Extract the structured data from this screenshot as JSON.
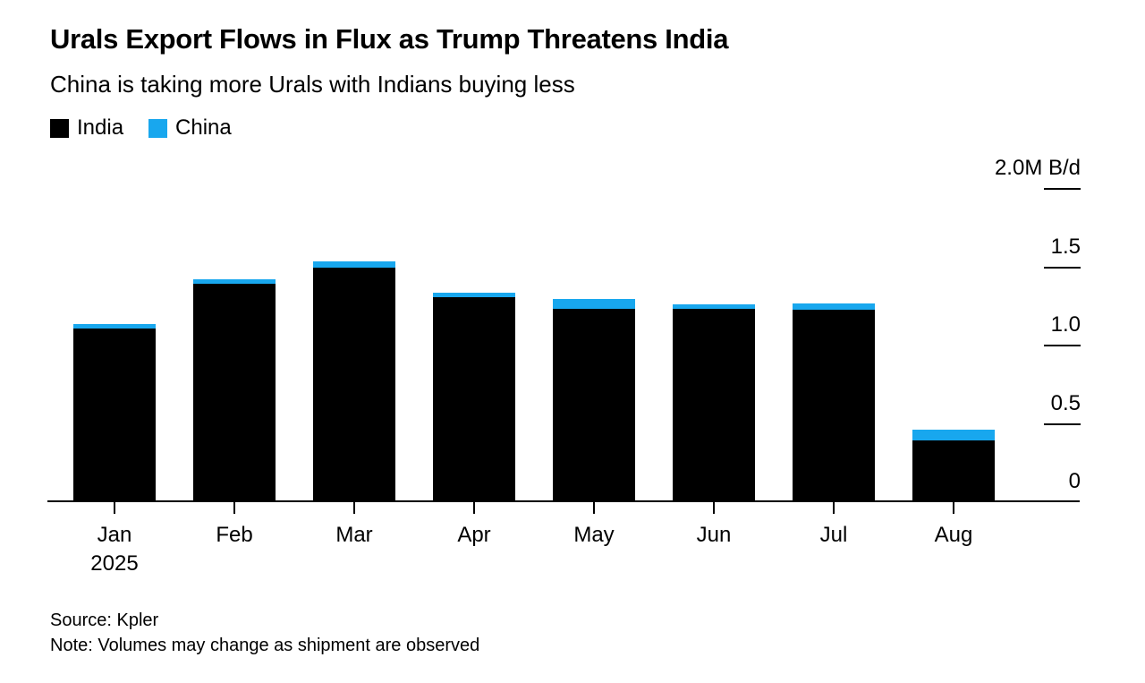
{
  "chart_data": {
    "type": "bar",
    "stacked": true,
    "title": "Urals Export Flows in Flux as Trump Threatens India",
    "subtitle": "China is taking more Urals with Indians buying less",
    "categories": [
      "Jan",
      "Feb",
      "Mar",
      "Apr",
      "May",
      "Jun",
      "Jul",
      "Aug"
    ],
    "x_sublabel": {
      "index": 0,
      "text": "2025"
    },
    "series": [
      {
        "name": "India",
        "color": "#000000",
        "values": [
          1.1,
          1.39,
          1.49,
          1.3,
          1.23,
          1.23,
          1.22,
          0.39
        ]
      },
      {
        "name": "China",
        "color": "#18a7ee",
        "values": [
          0.03,
          0.03,
          0.04,
          0.03,
          0.06,
          0.03,
          0.04,
          0.07
        ]
      }
    ],
    "unit": "M B/d",
    "ylim": [
      0,
      2.0
    ],
    "yticks": [
      {
        "value": 2.0,
        "label": "2.0M B/d"
      },
      {
        "value": 1.5,
        "label": "1.5"
      },
      {
        "value": 1.0,
        "label": "1.0"
      },
      {
        "value": 0.5,
        "label": "0.5"
      },
      {
        "value": 0,
        "label": "0"
      }
    ],
    "grid": false,
    "legend_position": "top-left",
    "y_axis_side": "right",
    "source": "Source: Kpler",
    "note": "Note: Volumes may change as shipment are observed"
  }
}
